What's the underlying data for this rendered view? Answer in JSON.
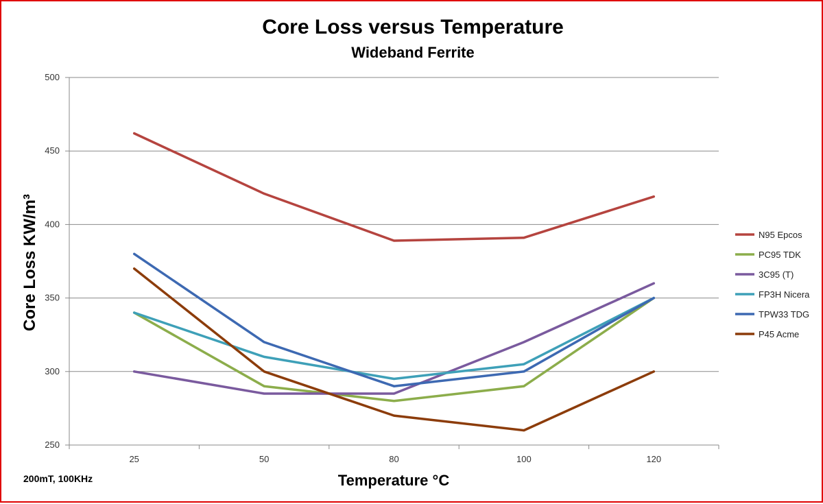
{
  "chart_data": {
    "type": "line",
    "title": "Core Loss versus Temperature",
    "subtitle": "Wideband Ferrite",
    "xlabel": "Temperature °C",
    "ylabel": "Core Loss KW/m³",
    "note": "200mT, 100KHz",
    "categories": [
      "25",
      "50",
      "80",
      "100",
      "120"
    ],
    "ylim": [
      250,
      500
    ],
    "yticks": [
      250,
      300,
      350,
      400,
      450,
      500
    ],
    "grid": true,
    "legend_position": "right",
    "series": [
      {
        "name": "N95 Epcos",
        "color": "#b5443f",
        "values": [
          462,
          421,
          389,
          391,
          419
        ]
      },
      {
        "name": "PC95 TDK",
        "color": "#8cad4b",
        "values": [
          340,
          290,
          280,
          290,
          350
        ]
      },
      {
        "name": "3C95 (T)",
        "color": "#7a5a9e",
        "values": [
          300,
          285,
          285,
          320,
          360
        ]
      },
      {
        "name": "FP3H Nicera",
        "color": "#3ea0b8",
        "values": [
          340,
          310,
          295,
          305,
          350
        ]
      },
      {
        "name": "TPW33 TDG",
        "color": "#3d69b2",
        "values": [
          380,
          320,
          290,
          300,
          350
        ]
      },
      {
        "name": "P45 Acme",
        "color": "#8c3c0a",
        "values": [
          370,
          300,
          270,
          260,
          300
        ]
      }
    ]
  }
}
